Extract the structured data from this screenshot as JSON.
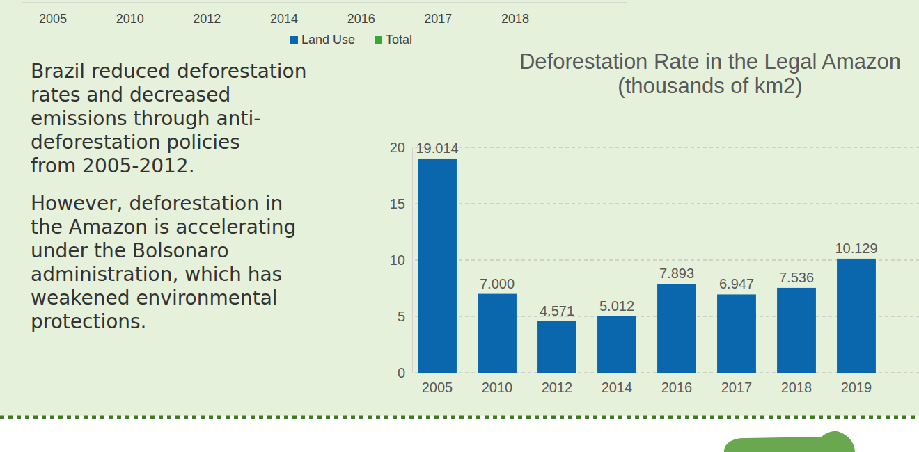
{
  "chart_data": {
    "type": "bar",
    "title": "Deforestation Rate in the Legal Amazon",
    "subtitle": "(thousands of km2)",
    "categories": [
      "2005",
      "2010",
      "2012",
      "2014",
      "2016",
      "2017",
      "2018",
      "2019"
    ],
    "values": [
      19.014,
      7.0,
      4.571,
      5.012,
      7.893,
      6.947,
      7.536,
      10.129
    ],
    "value_labels": [
      "19.014",
      "7.000",
      "4.571",
      "5.012",
      "7.893",
      "6.947",
      "7.536",
      "10.129"
    ],
    "color": "#0a67ad",
    "ylim": [
      0,
      20
    ],
    "yticks": [
      0,
      5,
      10,
      15,
      20
    ],
    "grid": true,
    "data_labels": true
  },
  "header_strip": {
    "categories": [
      "2005",
      "2010",
      "2012",
      "2014",
      "2016",
      "2017",
      "2018"
    ],
    "legend": [
      {
        "name": "Land Use",
        "color": "#0a67ad"
      },
      {
        "name": "Total",
        "color": "#3aa63a"
      }
    ]
  },
  "text": {
    "paragraphs": [
      [
        "Brazil reduced deforestation",
        "rates and decreased",
        "emissions through anti-",
        "deforestation policies",
        "from 2005-2012."
      ],
      [
        "However, deforestation in",
        "the Amazon is accelerating",
        "under the Bolsonaro",
        "administration, which has",
        "weakened environmental",
        "protections."
      ]
    ]
  }
}
